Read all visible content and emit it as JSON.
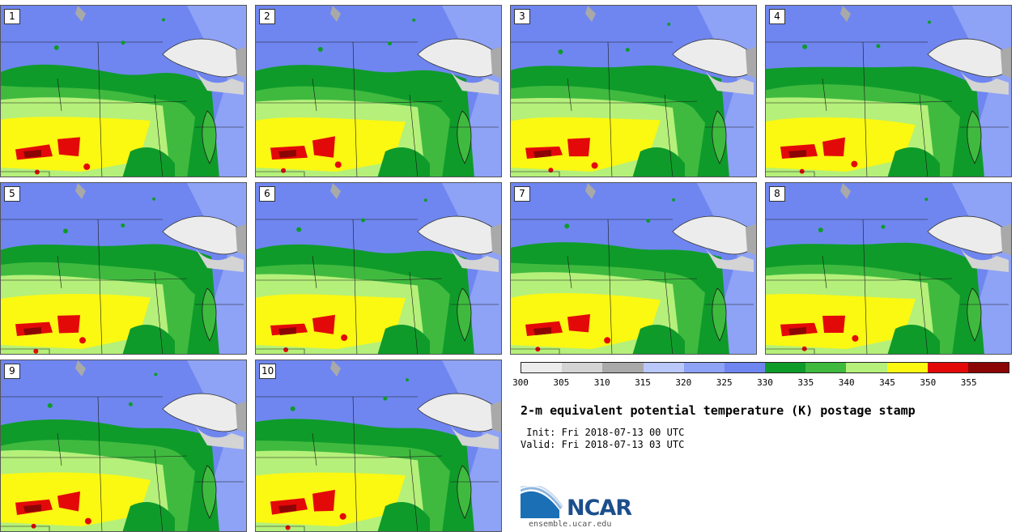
{
  "panels": [
    {
      "label": "1"
    },
    {
      "label": "2"
    },
    {
      "label": "3"
    },
    {
      "label": "4"
    },
    {
      "label": "5"
    },
    {
      "label": "6"
    },
    {
      "label": "7"
    },
    {
      "label": "8"
    },
    {
      "label": "9"
    },
    {
      "label": "10"
    }
  ],
  "legend": {
    "colors": [
      "#ececec",
      "#d4d4d4",
      "#a9a9a9",
      "#b9c7fb",
      "#8ea2f6",
      "#6f86f0",
      "#0f9b2a",
      "#3fba3f",
      "#b5f07a",
      "#fbf812",
      "#e30909",
      "#8b0505"
    ],
    "ticks": [
      "300",
      "305",
      "310",
      "315",
      "320",
      "325",
      "330",
      "335",
      "340",
      "345",
      "350",
      "355"
    ]
  },
  "title": "2-m equivalent potential temperature (K) postage stamp",
  "init": " Init: Fri 2018-07-13 00 UTC",
  "valid": "Valid: Fri 2018-07-13 03 UTC",
  "logo": {
    "text": "NCAR",
    "url": "ensemble.ucar.edu"
  }
}
